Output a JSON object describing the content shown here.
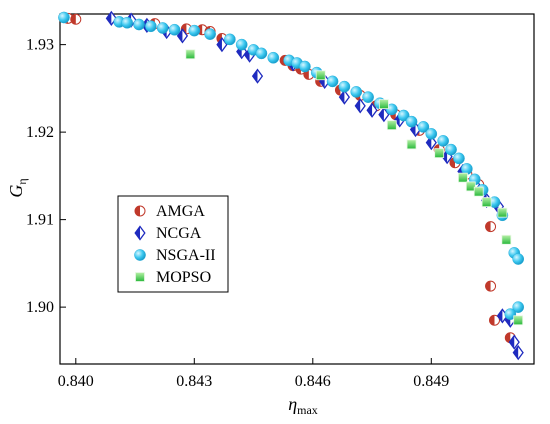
{
  "chart_data": {
    "type": "scatter",
    "xlabel": "η",
    "xlabel_sub": "max",
    "ylabel": "G",
    "ylabel_sub": "η",
    "xlim": [
      0.8396,
      0.8516
    ],
    "ylim": [
      1.8935,
      1.9335
    ],
    "x_ticks": [
      0.84,
      0.843,
      0.846,
      0.849
    ],
    "x_tick_labels": [
      "0.840",
      "0.843",
      "0.846",
      "0.849"
    ],
    "y_ticks": [
      1.9,
      1.91,
      1.92,
      1.93
    ],
    "y_tick_labels": [
      "1.90",
      "1.91",
      "1.92",
      "1.93"
    ],
    "grid": false,
    "legend_position": "center-left",
    "series": [
      {
        "name": "AMGA",
        "marker": "half-circle",
        "color": "#c0392b",
        "points": [
          [
            0.8398,
            1.933
          ],
          [
            0.84,
            1.9329
          ],
          [
            0.842,
            1.9324
          ],
          [
            0.8428,
            1.9318
          ],
          [
            0.8432,
            1.9317
          ],
          [
            0.8434,
            1.9315
          ],
          [
            0.8437,
            1.9307
          ],
          [
            0.8453,
            1.9282
          ],
          [
            0.8455,
            1.9276
          ],
          [
            0.8457,
            1.9272
          ],
          [
            0.8459,
            1.9266
          ],
          [
            0.8462,
            1.9258
          ],
          [
            0.8467,
            1.9248
          ],
          [
            0.8472,
            1.9242
          ],
          [
            0.8476,
            1.923
          ],
          [
            0.8481,
            1.922
          ],
          [
            0.8487,
            1.9202
          ],
          [
            0.8492,
            1.918
          ],
          [
            0.8496,
            1.9165
          ],
          [
            0.8499,
            1.9152
          ],
          [
            0.8502,
            1.914
          ],
          [
            0.8505,
            1.9092
          ],
          [
            0.8505,
            1.9024
          ],
          [
            0.8506,
            1.8985
          ],
          [
            0.851,
            1.8965
          ]
        ]
      },
      {
        "name": "NCGA",
        "marker": "diamond",
        "color": "#1f2bbf",
        "points": [
          [
            0.8409,
            1.933
          ],
          [
            0.8414,
            1.9328
          ],
          [
            0.8418,
            1.9322
          ],
          [
            0.8423,
            1.9315
          ],
          [
            0.8427,
            1.931
          ],
          [
            0.8437,
            1.93
          ],
          [
            0.8442,
            1.9292
          ],
          [
            0.8444,
            1.9288
          ],
          [
            0.8446,
            1.9264
          ],
          [
            0.8455,
            1.9278
          ],
          [
            0.8463,
            1.9258
          ],
          [
            0.8468,
            1.924
          ],
          [
            0.8472,
            1.923
          ],
          [
            0.8475,
            1.9225
          ],
          [
            0.8478,
            1.922
          ],
          [
            0.8482,
            1.9214
          ],
          [
            0.8486,
            1.9203
          ],
          [
            0.849,
            1.9188
          ],
          [
            0.8494,
            1.9172
          ],
          [
            0.8498,
            1.9155
          ],
          [
            0.8501,
            1.914
          ],
          [
            0.8504,
            1.9122
          ],
          [
            0.8507,
            1.9115
          ],
          [
            0.8508,
            1.899
          ],
          [
            0.851,
            1.8985
          ],
          [
            0.8511,
            1.896
          ],
          [
            0.8512,
            1.8948
          ]
        ]
      },
      {
        "name": "NSGA-II",
        "marker": "sphere",
        "color": "#39c6ef",
        "points": [
          [
            0.8397,
            1.9331
          ],
          [
            0.8411,
            1.9326
          ],
          [
            0.8413,
            1.9325
          ],
          [
            0.8416,
            1.9323
          ],
          [
            0.8419,
            1.9321
          ],
          [
            0.8422,
            1.9319
          ],
          [
            0.8425,
            1.9317
          ],
          [
            0.843,
            1.9316
          ],
          [
            0.8434,
            1.9312
          ],
          [
            0.8439,
            1.9306
          ],
          [
            0.8442,
            1.93
          ],
          [
            0.8445,
            1.9294
          ],
          [
            0.8447,
            1.929
          ],
          [
            0.845,
            1.9285
          ],
          [
            0.8454,
            1.9282
          ],
          [
            0.8456,
            1.9279
          ],
          [
            0.8458,
            1.9275
          ],
          [
            0.8461,
            1.9268
          ],
          [
            0.8465,
            1.9258
          ],
          [
            0.8468,
            1.9252
          ],
          [
            0.8471,
            1.9246
          ],
          [
            0.8474,
            1.924
          ],
          [
            0.8477,
            1.9233
          ],
          [
            0.848,
            1.9226
          ],
          [
            0.8483,
            1.9219
          ],
          [
            0.8485,
            1.9212
          ],
          [
            0.8488,
            1.9206
          ],
          [
            0.849,
            1.9198
          ],
          [
            0.8493,
            1.919
          ],
          [
            0.8495,
            1.918
          ],
          [
            0.8497,
            1.917
          ],
          [
            0.8499,
            1.9158
          ],
          [
            0.8501,
            1.9146
          ],
          [
            0.8503,
            1.9134
          ],
          [
            0.8506,
            1.912
          ],
          [
            0.8508,
            1.9105
          ],
          [
            0.8511,
            1.9062
          ],
          [
            0.8512,
            1.9055
          ],
          [
            0.8512,
            1.9
          ],
          [
            0.851,
            1.8992
          ]
        ]
      },
      {
        "name": "MOPSO",
        "marker": "square",
        "color": "#2ecc40",
        "points": [
          [
            0.8429,
            1.9289
          ],
          [
            0.8462,
            1.9265
          ],
          [
            0.8478,
            1.9232
          ],
          [
            0.848,
            1.9208
          ],
          [
            0.8485,
            1.9186
          ],
          [
            0.8492,
            1.9176
          ],
          [
            0.8498,
            1.9148
          ],
          [
            0.85,
            1.9138
          ],
          [
            0.8502,
            1.9132
          ],
          [
            0.8504,
            1.912
          ],
          [
            0.8508,
            1.9108
          ],
          [
            0.8509,
            1.9077
          ],
          [
            0.8512,
            1.8985
          ]
        ]
      }
    ]
  }
}
